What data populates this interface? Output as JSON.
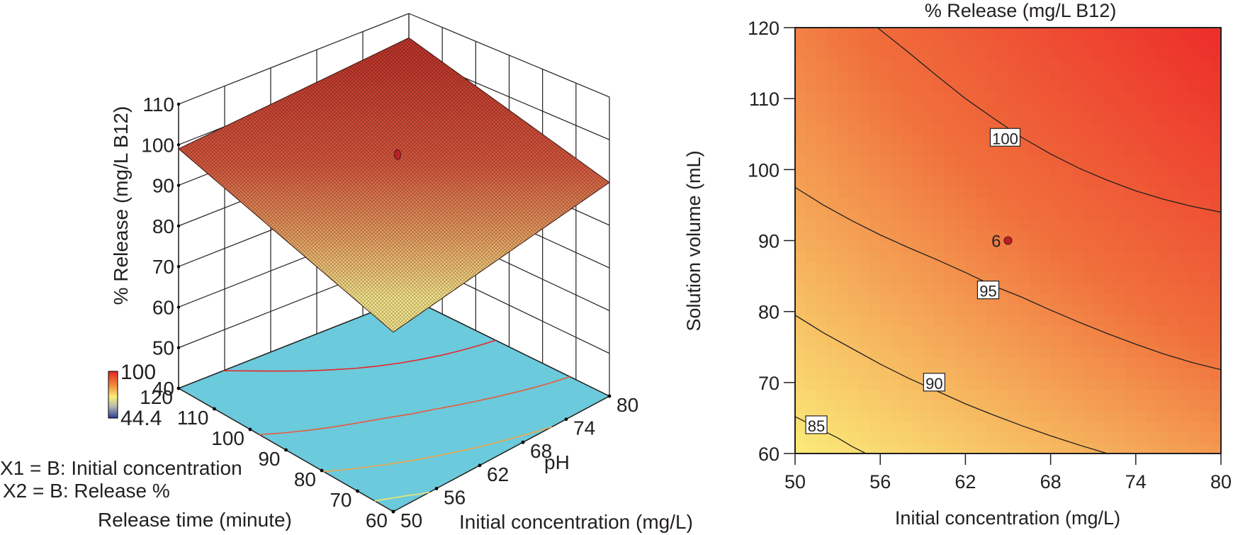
{
  "chart_data": [
    {
      "id": "surface3d",
      "type": "surface",
      "zlabel": "% Release (mg/L B12)",
      "xlabel": "Initial concentration (mg/L)",
      "ylabel": "Release time (minute)",
      "axis_annotation": "pH",
      "x_ticks": [
        50,
        56,
        62,
        68,
        74,
        80
      ],
      "y_ticks": [
        60,
        70,
        80,
        90,
        100,
        110,
        120
      ],
      "z_ticks": [
        40,
        50,
        60,
        70,
        80,
        90,
        100,
        110
      ],
      "xlim": [
        50,
        80
      ],
      "ylim": [
        60,
        120
      ],
      "zlim": [
        40,
        110
      ],
      "corner_values": {
        "x50_y60": 82,
        "x80_y60": 90,
        "x50_y120": 99,
        "x80_y120": 104
      },
      "design_point": {
        "x": 65,
        "y": 90,
        "z": 98.5
      },
      "floor_contour_levels": [
        85,
        90,
        95,
        100
      ],
      "colorbar": {
        "max": "100",
        "min": "44.4",
        "max_color": "#ee3124",
        "min_color": "#3f57a6"
      },
      "legend_lines": [
        "X1 = B: Initial concentration",
        "X2 = B: Release %"
      ],
      "colors": {
        "floor": "#6bcadb",
        "surface_high": "#c8382c",
        "surface_low": "#f6e58a"
      }
    },
    {
      "id": "contour2d",
      "type": "contour",
      "title": "% Release (mg/L B12)",
      "xlabel": "Initial concentration (mg/L)",
      "ylabel": "Solution volume (mL)",
      "x_ticks": [
        50,
        56,
        62,
        68,
        74,
        80
      ],
      "y_ticks": [
        60,
        70,
        80,
        90,
        100,
        110,
        120
      ],
      "xlim": [
        50,
        80
      ],
      "ylim": [
        60,
        120
      ],
      "contours": [
        {
          "level": 100,
          "label": "100",
          "label_at": [
            64.8,
            104.5
          ],
          "points": [
            [
              55.8,
              120
            ],
            [
              58,
              116.5
            ],
            [
              60,
              113.2
            ],
            [
              62,
              110
            ],
            [
              64,
              107.2
            ],
            [
              66,
              104.5
            ],
            [
              68,
              102.2
            ],
            [
              70,
              100.2
            ],
            [
              72,
              98.5
            ],
            [
              74,
              97
            ],
            [
              76,
              95.8
            ],
            [
              78,
              94.8
            ],
            [
              80,
              94
            ]
          ]
        },
        {
          "level": 95,
          "label": "95",
          "label_at": [
            63.6,
            83
          ],
          "points": [
            [
              50,
              97.5
            ],
            [
              52,
              95
            ],
            [
              54,
              92.8
            ],
            [
              56,
              90.8
            ],
            [
              58,
              89
            ],
            [
              60,
              87.3
            ],
            [
              62,
              85.5
            ],
            [
              64,
              83.6
            ],
            [
              66,
              82
            ],
            [
              68,
              80.2
            ],
            [
              70,
              78.5
            ],
            [
              72,
              76.9
            ],
            [
              74,
              75.4
            ],
            [
              76,
              74
            ],
            [
              78,
              72.8
            ],
            [
              80,
              71.8
            ]
          ]
        },
        {
          "level": 90,
          "label": "90",
          "label_at": [
            59.8,
            70
          ],
          "points": [
            [
              50,
              79.5
            ],
            [
              52,
              77
            ],
            [
              54,
              74.8
            ],
            [
              56,
              72.6
            ],
            [
              58,
              70.6
            ],
            [
              60,
              68.8
            ],
            [
              62,
              67
            ],
            [
              64,
              65.4
            ],
            [
              66,
              63.9
            ],
            [
              68,
              62.5
            ],
            [
              70,
              61.2
            ],
            [
              72,
              60
            ]
          ]
        },
        {
          "level": 85,
          "label": "85",
          "label_at": [
            51.5,
            64
          ],
          "points": [
            [
              50,
              65.2
            ],
            [
              51,
              64.2
            ],
            [
              52,
              63.2
            ],
            [
              53,
              62.2
            ],
            [
              54,
              61
            ],
            [
              55,
              60
            ]
          ]
        }
      ],
      "design_point": {
        "x": 65,
        "y": 90,
        "label": "6"
      },
      "gradient": {
        "high_color": "#ec2227",
        "mid_color": "#f0703c",
        "low_color": "#fbf17c",
        "value_range": [
          82,
          104
        ]
      }
    }
  ]
}
